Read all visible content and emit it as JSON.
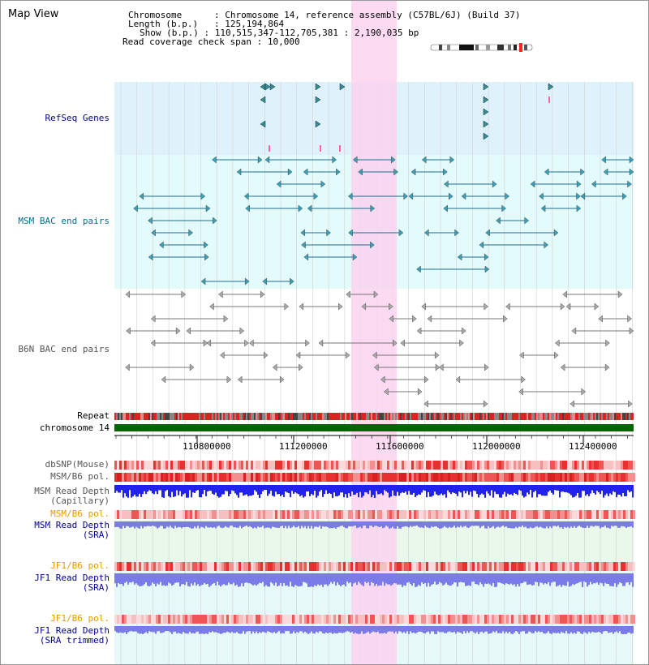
{
  "page_title": "Map View",
  "info": {
    "chromosome_label": "Chromosome",
    "chromosome_value": "Chromosome 14, reference assembly (C57BL/6J) (Build 37)",
    "length_label": "Length (b.p.)",
    "length_value": "125,194,864",
    "show_label": "Show (b.p.)",
    "show_value": "110,515,347-112,705,381 : 2,190,035 bp",
    "coverage_label": "Read coverage check span",
    "coverage_value": "10,000"
  },
  "tracks": {
    "refseq": "RefSeq Genes",
    "msm_bac": "MSM BAC end pairs",
    "b6n_bac": "B6N BAC end pairs",
    "repeat": "Repeat",
    "chromosome": "chromosome 14",
    "dbsnp": "dbSNP(Mouse)",
    "msm_b6_pol_1": "MSM/B6 pol.",
    "msm_read_depth_cap_1": "MSM Read Depth",
    "msm_read_depth_cap_2": "(Capillary)",
    "msm_b6_pol_2": "MSM/B6 pol.",
    "msm_read_depth_sra_1": "MSM Read Depth",
    "msm_read_depth_sra_2": "(SRA)",
    "jf1_b6_pol_1": "JF1/B6 pol.",
    "jf1_read_depth_sra_1": "JF1 Read Depth",
    "jf1_read_depth_sra_2": "(SRA)",
    "jf1_b6_pol_2": "JF1/B6 pol.",
    "jf1_read_depth_trim_1": "JF1 Read Depth",
    "jf1_read_depth_trim_2": "(SRA trimmed)"
  },
  "ruler": {
    "ticks": [
      "110800000",
      "111200000",
      "111600000",
      "112000000",
      "112400000"
    ]
  },
  "colors": {
    "refseq_bg": "#dff1fb",
    "msm_bac_bg": "#e4fbfb",
    "highlight": "#fad4f0",
    "chromosome_bar": "#006600",
    "label_blue": "#000099",
    "label_teal": "#006f8f",
    "label_gray": "#555555",
    "label_orange": "#e69a00",
    "depth_blue": "#2222ee",
    "depth_light": "#7a7ae8"
  }
}
